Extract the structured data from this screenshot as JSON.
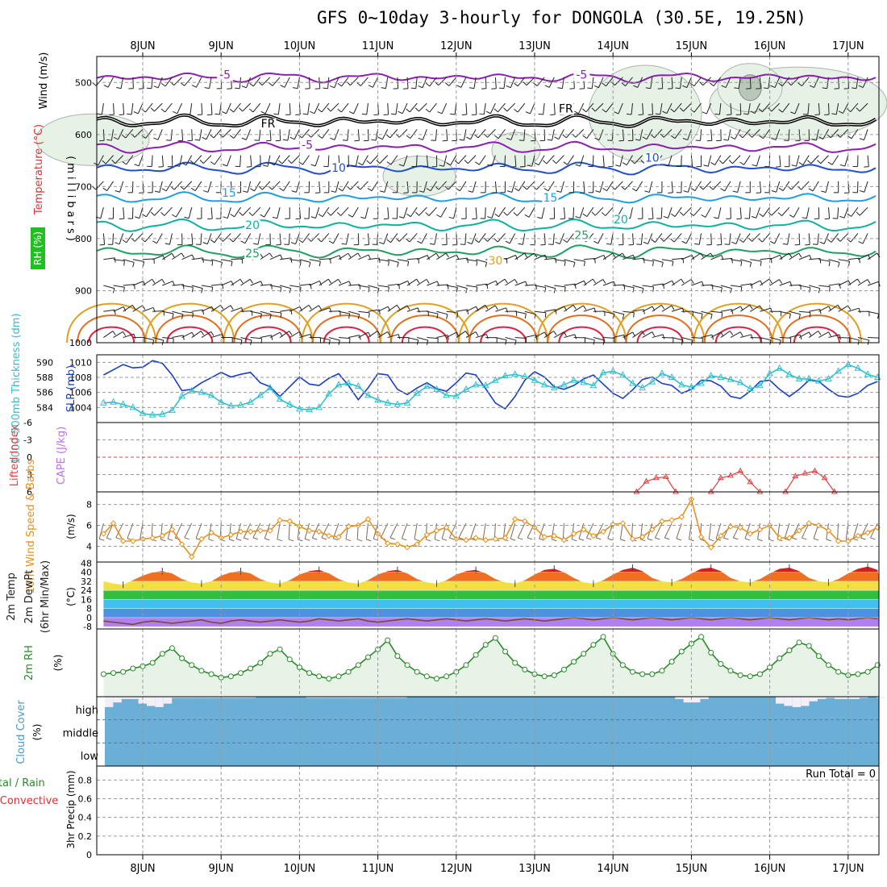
{
  "title": "GFS 0~10day 3-hourly for DONGOLA (30.5E, 19.25N)",
  "colors": {
    "temp_cold": "#8a1fb0",
    "freezing": "#000000",
    "temp_10": "#1f4fd0",
    "temp_15": "#1f9fe0",
    "temp_20": "#10b0a0",
    "temp_25": "#20a060",
    "temp_30": "#e0a020",
    "temp_35": "#e07020",
    "temp_40": "#e02040",
    "rh_fill": "#e6f2e6",
    "slp": "#1a3fbf",
    "thickness": "#30c0d0",
    "lifted": "#e04040",
    "wind": "#e8901a",
    "rh2m": "#2a8a2a",
    "cloud": "#6baed6",
    "grid": "#9a9a9a"
  },
  "chart_data": [
    {
      "id": "upper_air",
      "type": "contour",
      "ylabel_main": "(millibars)",
      "ylabel_lines": [
        "Wind (m/s)",
        "Temperature (°C)",
        "RH (%)"
      ],
      "yticks": [
        500,
        600,
        700,
        800,
        900,
        1000
      ],
      "ylim": [
        1000,
        450
      ],
      "contour_labels": [
        {
          "text": "-5",
          "day": 1.05,
          "p": 491,
          "color": "#8a1fb0"
        },
        {
          "text": "-5",
          "day": 5.6,
          "p": 491,
          "color": "#8a1fb0"
        },
        {
          "text": "FR",
          "day": 1.6,
          "p": 585,
          "color": "#000000"
        },
        {
          "text": "FR",
          "day": 5.4,
          "p": 556,
          "color": "#000000"
        },
        {
          "text": "-5",
          "day": 2.1,
          "p": 626,
          "color": "#8a1fb0"
        },
        {
          "text": "10",
          "day": 2.5,
          "p": 670,
          "color": "#1f4fd0"
        },
        {
          "text": "10",
          "day": 6.5,
          "p": 651,
          "color": "#1f4fd0"
        },
        {
          "text": "15",
          "day": 1.1,
          "p": 718,
          "color": "#1f9fe0"
        },
        {
          "text": "15",
          "day": 5.2,
          "p": 727,
          "color": "#1f9fe0"
        },
        {
          "text": "20",
          "day": 1.4,
          "p": 780,
          "color": "#10b0a0"
        },
        {
          "text": "20",
          "day": 6.1,
          "p": 769,
          "color": "#10b0a0"
        },
        {
          "text": "25",
          "day": 1.4,
          "p": 834,
          "color": "#20a060"
        },
        {
          "text": "25",
          "day": 5.6,
          "p": 799,
          "color": "#20a060"
        },
        {
          "text": "30",
          "day": 4.5,
          "p": 848,
          "color": "#e0a020"
        }
      ]
    },
    {
      "id": "slp_thickness",
      "type": "line",
      "ylabel_left": "1000-500mb Thickness (dm)",
      "ylabel_right": "SLP (mb)",
      "yticks_left": [
        584,
        586,
        588,
        590
      ],
      "yticks_right": [
        1004,
        1006,
        1008,
        1010
      ],
      "ylim_left": [
        582,
        591
      ],
      "series": [
        {
          "name": "SLP (mb)",
          "axis": "right",
          "values": [
            1007.8,
            1008.6,
            1009.4,
            1008.9,
            1009.0,
            1010.0,
            1009.6,
            1007.8,
            1005.4,
            1005.6,
            1006.6,
            1007.4,
            1008.2,
            1007.5,
            1007.9,
            1008.2,
            1006.6,
            1006.0,
            1004.5,
            1006.0,
            1007.5,
            1006.4,
            1006.2,
            1007.3,
            1008.0,
            1006.2,
            1004.0,
            1005.8,
            1008.0,
            1007.8,
            1005.6,
            1004.8,
            1005.8,
            1006.6,
            1005.7,
            1005.3,
            1006.6,
            1008.1,
            1007.8,
            1005.7,
            1003.5,
            1002.6,
            1004.5,
            1007.0,
            1008.3,
            1007.5,
            1006.0,
            1005.6,
            1006.2,
            1007.2,
            1007.8,
            1006.4,
            1005.0,
            1004.2,
            1005.5,
            1007.1,
            1007.5,
            1006.5,
            1006.2,
            1005.0,
            1005.6,
            1007.0,
            1006.9,
            1006.1,
            1004.5,
            1004.2,
            1005.3,
            1006.8,
            1007.0,
            1005.6,
            1004.5,
            1005.6,
            1007.0,
            1006.8,
            1005.6,
            1004.6,
            1004.4,
            1005.0,
            1006.2,
            1006.8,
            1004.6,
            1004.3,
            1004.4,
            1005.8
          ]
        },
        {
          "name": "Thickness (dm)",
          "axis": "left",
          "values": [
            584.6,
            584.7,
            584.4,
            584.0,
            583.2,
            583.0,
            583.1,
            583.6,
            585.5,
            586.2,
            586.0,
            585.6,
            584.7,
            584.2,
            584.3,
            584.7,
            585.6,
            586.6,
            585.1,
            584.4,
            583.8,
            583.7,
            584.0,
            585.8,
            587.0,
            587.2,
            586.8,
            585.6,
            585.0,
            584.6,
            584.4,
            584.6,
            585.9,
            586.8,
            586.4,
            585.6,
            585.5,
            586.4,
            587.0,
            586.9,
            587.6,
            588.2,
            588.4,
            588.1,
            587.6,
            587.0,
            586.6,
            587.0,
            587.6,
            587.3,
            586.9,
            588.6,
            588.8,
            588.3,
            587.2,
            586.6,
            587.4,
            588.5,
            588.0,
            587.0,
            586.7,
            587.2,
            588.2,
            588.0,
            587.7,
            587.3,
            586.5,
            586.9,
            588.5,
            589.2,
            588.4,
            587.8,
            587.8,
            587.5,
            587.8,
            588.8,
            589.7,
            589.2,
            588.4,
            588.0,
            588.0,
            587.5,
            587.6,
            587.9
          ]
        }
      ]
    },
    {
      "id": "stability",
      "type": "line",
      "ylabel_left": "Lifted Index",
      "ylabel_right": "CAPE (J/kg)",
      "yticks": [
        "6",
        "3",
        "0",
        "-3",
        "-6"
      ],
      "ylim": [
        6,
        -6
      ],
      "segments": [
        {
          "name": "Lifted Index",
          "x_start_day": 6.3,
          "values": [
            6.0,
            4.2,
            3.6,
            3.4,
            6.0
          ]
        },
        {
          "name": "Lifted Index",
          "x_start_day": 7.25,
          "values": [
            6.0,
            3.6,
            3.2,
            2.4,
            4.3,
            6.0
          ]
        },
        {
          "name": "Lifted Index",
          "x_start_day": 8.2,
          "values": [
            6.0,
            3.3,
            2.8,
            2.4,
            3.6,
            6.0
          ]
        }
      ]
    },
    {
      "id": "wind10m",
      "type": "line",
      "ylabel_left": "10m Wind Speed & Barbs",
      "ylabel_right": "(m/s)",
      "yticks": [
        4,
        6,
        8
      ],
      "ylim": [
        2.5,
        9.2
      ],
      "series": [
        {
          "name": "10m Wind Speed",
          "values": [
            5.2,
            6.2,
            4.5,
            4.5,
            4.7,
            4.8,
            5.0,
            5.6,
            4.2,
            3.0,
            4.7,
            5.3,
            4.8,
            5.1,
            5.4,
            5.4,
            5.5,
            5.5,
            6.5,
            6.4,
            5.9,
            5.5,
            5.4,
            5.0,
            4.9,
            5.9,
            6.0,
            6.6,
            5.2,
            4.3,
            4.2,
            3.9,
            4.2,
            5.1,
            5.5,
            5.8,
            4.7,
            4.6,
            4.8,
            4.6,
            4.7,
            4.8,
            6.6,
            6.4,
            5.8,
            4.9,
            5.0,
            4.6,
            5.2,
            5.6,
            5.0,
            5.4,
            6.1,
            6.2,
            4.7,
            4.9,
            5.6,
            6.4,
            6.5,
            6.8,
            8.5,
            4.9,
            3.9,
            5.0,
            5.9,
            5.8,
            5.2,
            5.6,
            6.0,
            4.8,
            4.8,
            5.5,
            6.2,
            6.0,
            5.5,
            4.5,
            4.5,
            5.0,
            5.3,
            5.8,
            6.2,
            5.5,
            6.0,
            6.5,
            5.4
          ]
        }
      ]
    },
    {
      "id": "temp2m",
      "type": "area",
      "ylabel_lines": [
        "2m Temp",
        "2m DewPt",
        "(6hr Min/Max)"
      ],
      "ylabel_right": "(°C)",
      "yticks": [
        -8,
        0,
        8,
        16,
        24,
        32,
        40,
        48
      ],
      "ylim": [
        -10,
        49
      ],
      "series": [
        {
          "name": "2m Temp",
          "values": [
            32,
            30,
            29,
            33,
            37,
            40,
            41,
            39,
            34,
            31,
            30,
            32,
            37,
            40,
            41,
            39,
            34,
            31,
            30,
            33,
            38,
            41,
            42,
            39,
            34,
            31,
            30,
            33,
            38,
            41,
            42,
            39,
            34,
            31,
            30,
            33,
            38,
            41,
            42,
            39,
            34,
            31,
            30,
            33,
            38,
            42,
            43,
            40,
            35,
            31,
            30,
            33,
            38,
            42,
            44,
            41,
            35,
            32,
            31,
            34,
            39,
            43,
            44,
            41,
            35,
            32,
            31,
            34,
            39,
            43,
            44,
            41,
            35,
            32,
            31,
            34,
            39,
            43,
            45,
            42,
            36,
            33,
            32,
            36
          ]
        },
        {
          "name": "2m DewPt",
          "values": [
            -3,
            -4,
            -5,
            -6,
            -4,
            -3,
            -4,
            -5,
            -4,
            -3,
            -2,
            -4,
            -5,
            -3,
            -2,
            -3,
            -4,
            -3,
            -2,
            -3,
            -4,
            -3,
            -1,
            -2,
            -3,
            -2,
            -1,
            -3,
            -4,
            -3,
            -2,
            -1,
            -2,
            -3,
            -2,
            -1,
            -2,
            -3,
            -2,
            -1,
            -2,
            -3,
            -2,
            -1,
            -2,
            -3,
            -2,
            -1,
            0,
            -1,
            -2,
            -1,
            0,
            -1,
            -2,
            -1,
            0,
            -1,
            -2,
            -1,
            0,
            -1,
            -2,
            -1,
            0,
            -1,
            -2,
            -1,
            0,
            -1,
            -2,
            -1,
            0,
            -1,
            -2,
            -1,
            -2,
            -1,
            0,
            -1,
            -2,
            -1,
            0,
            -1
          ]
        }
      ]
    },
    {
      "id": "rh2m",
      "type": "line",
      "ylabel_left": "2m RH",
      "ylabel_right": "(%)",
      "ylim": [
        0,
        60
      ],
      "series": [
        {
          "name": "2m RH",
          "values": [
            20,
            21,
            22,
            25,
            27,
            30,
            38,
            43,
            34,
            28,
            23,
            20,
            17,
            18,
            21,
            25,
            30,
            38,
            42,
            33,
            26,
            21,
            18,
            16,
            18,
            22,
            28,
            35,
            42,
            50,
            36,
            28,
            22,
            18,
            16,
            18,
            22,
            28,
            37,
            46,
            52,
            40,
            30,
            24,
            20,
            18,
            19,
            24,
            31,
            38,
            46,
            53,
            38,
            28,
            22,
            20,
            20,
            23,
            31,
            40,
            47,
            53,
            39,
            29,
            23,
            19,
            18,
            20,
            26,
            34,
            41,
            48,
            45,
            36,
            28,
            22,
            19,
            20,
            22,
            28,
            35,
            39,
            42,
            31
          ]
        }
      ]
    },
    {
      "id": "cloud",
      "type": "area",
      "ylabel_left": "Cloud Cover",
      "ylabel_right": "(%)",
      "levels": [
        "high",
        "middle",
        "low"
      ],
      "high_cover_pct": [
        45,
        25,
        10,
        10,
        30,
        40,
        45,
        30,
        5,
        5,
        5,
        5,
        5,
        5,
        5,
        5,
        5,
        5,
        0,
        0,
        0,
        0,
        0,
        0,
        5,
        5,
        5,
        5,
        5,
        5,
        5,
        5,
        5,
        5,
        5,
        5,
        0,
        0,
        0,
        0,
        0,
        0,
        0,
        0,
        0,
        0,
        0,
        0,
        0,
        0,
        0,
        0,
        0,
        0,
        0,
        0,
        0,
        0,
        0,
        0,
        0,
        0,
        0,
        0,
        0,
        0,
        0,
        0,
        10,
        25,
        25,
        10,
        0,
        0,
        0,
        0,
        0,
        0,
        0,
        0,
        30,
        40,
        45,
        40,
        20,
        10,
        5,
        10,
        10,
        10,
        5,
        0,
        5,
        0
      ]
    },
    {
      "id": "precip",
      "type": "bar",
      "ylabel_left": "Total / Rain Convective",
      "ylabel_right": "3hr Precip (mm)",
      "yticks": [
        "0",
        "0.2",
        "0.4",
        "0.6",
        "0.8"
      ],
      "ylim": [
        0,
        0.95
      ],
      "run_total": "Run Total = 0",
      "values": []
    }
  ],
  "x_axis": {
    "days": [
      "8JUN",
      "9JUN",
      "10JUN",
      "11JUN",
      "12JUN",
      "13JUN",
      "14JUN",
      "15JUN",
      "16JUN",
      "17JUN"
    ]
  }
}
